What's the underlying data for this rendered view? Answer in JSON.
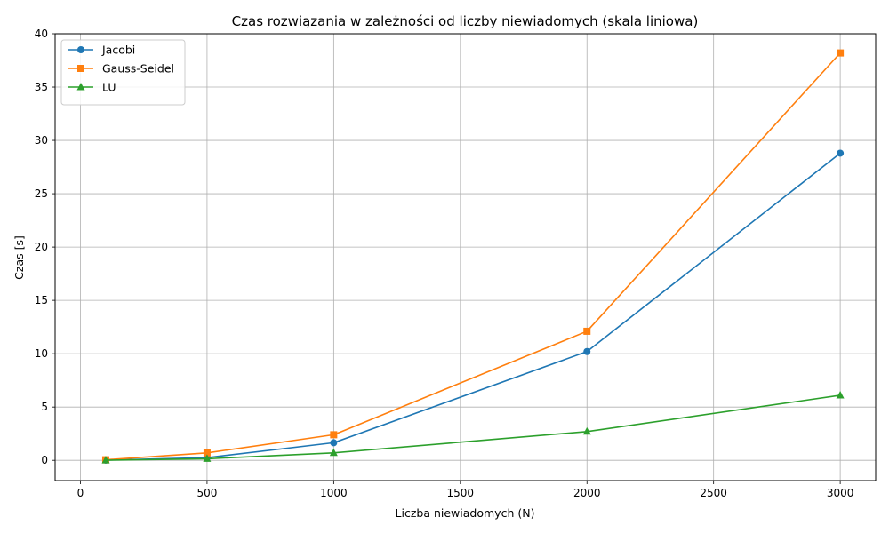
{
  "chart_data": {
    "type": "line",
    "title": "Czas rozwiązania w zależności od liczby niewiadomych (skala liniowa)",
    "xlabel": "Liczba niewiadomych (N)",
    "ylabel": "Czas [s]",
    "xlim": [
      -100,
      3140
    ],
    "ylim": [
      -1.9,
      40
    ],
    "xticks": [
      0,
      500,
      1000,
      1500,
      2000,
      2500,
      3000
    ],
    "yticks": [
      0,
      5,
      10,
      15,
      20,
      25,
      30,
      35,
      40
    ],
    "xtick_labels": [
      "0",
      "500",
      "1000",
      "1500",
      "2000",
      "2500",
      "3000"
    ],
    "ytick_labels": [
      "0",
      "5",
      "10",
      "15",
      "20",
      "25",
      "30",
      "35",
      "40"
    ],
    "grid": true,
    "legend_position": "top-left",
    "x": [
      100,
      500,
      1000,
      2000,
      3000
    ],
    "series": [
      {
        "name": "Jacobi",
        "marker": "circle",
        "color": "#1f77b4",
        "values": [
          0.02,
          0.25,
          1.65,
          10.2,
          28.8
        ]
      },
      {
        "name": "Gauss-Seidel",
        "marker": "square",
        "color": "#ff7f0e",
        "values": [
          0.05,
          0.7,
          2.4,
          12.1,
          38.2
        ]
      },
      {
        "name": "LU",
        "marker": "triangle",
        "color": "#2ca02c",
        "values": [
          0.01,
          0.15,
          0.7,
          2.7,
          6.1
        ]
      }
    ]
  }
}
